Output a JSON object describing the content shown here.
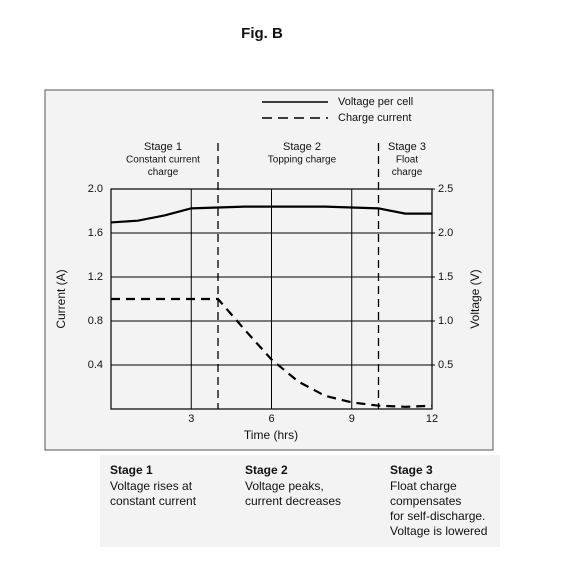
{
  "chart_data": {
    "type": "line",
    "title": "Fig. B",
    "x": [
      0,
      1,
      2,
      3,
      4,
      5,
      6,
      7,
      8,
      9,
      10,
      11,
      12
    ],
    "series": [
      {
        "name": "Voltage per cell",
        "color": "#000000",
        "dashed": false,
        "axis": "y2",
        "values": [
          2.12,
          2.14,
          2.2,
          2.28,
          2.29,
          2.3,
          2.3,
          2.3,
          2.3,
          2.29,
          2.28,
          2.22,
          2.22
        ]
      },
      {
        "name": "Charge current",
        "color": "#000000",
        "dashed": true,
        "axis": "y",
        "values": [
          1.0,
          1.0,
          1.0,
          1.0,
          1.0,
          0.72,
          0.45,
          0.25,
          0.12,
          0.06,
          0.03,
          0.02,
          0.03
        ]
      }
    ],
    "x_label": "Time (hrs)",
    "y_label": "Current (A)",
    "y2_label": "Voltage (V)",
    "xlim": [
      0,
      12
    ],
    "xticks": [
      3,
      6,
      9,
      12
    ],
    "ylim": [
      0,
      2.0
    ],
    "yticks": [
      0.4,
      0.8,
      1.2,
      1.6,
      {
        "value": 2,
        "label": "2.0"
      }
    ],
    "y2lim": [
      0,
      2.5
    ],
    "y2ticks": [
      0.5,
      {
        "value": 1,
        "label": "1.0"
      },
      1.5,
      {
        "value": 2,
        "label": "2.0"
      },
      2.5
    ],
    "grid": true,
    "stage_boundaries": [
      4,
      10
    ],
    "stages": [
      {
        "name": "Stage 1",
        "lines": [
          "Constant current",
          "charge"
        ]
      },
      {
        "name": "Stage 2",
        "lines": [
          "Topping charge"
        ]
      },
      {
        "name": "Stage 3",
        "lines": [
          "Float",
          "charge"
        ]
      }
    ],
    "notes": [
      {
        "title": "Stage 1",
        "lines": [
          "Voltage rises at",
          "constant current"
        ]
      },
      {
        "title": "Stage 2",
        "lines": [
          "Voltage peaks,",
          "current decreases"
        ]
      },
      {
        "title": "Stage 3",
        "lines": [
          "Float charge",
          "compensates",
          "for self-discharge.",
          "Voltage is lowered"
        ]
      }
    ]
  }
}
